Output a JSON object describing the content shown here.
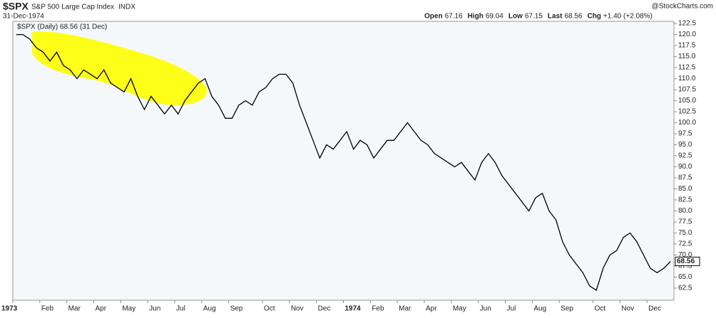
{
  "header": {
    "symbol": "$SPX",
    "name": "S&P 500 Large Cap Index",
    "exchange": "INDX",
    "date": "31-Dec-1974",
    "quote": [
      {
        "label": "Open",
        "value": "67.16"
      },
      {
        "label": "High",
        "value": "69.04"
      },
      {
        "label": "Low",
        "value": "67.15"
      },
      {
        "label": "Last",
        "value": "68.56"
      },
      {
        "label": "Chg",
        "value": "+1.40 (+2.08%)"
      }
    ],
    "credit": "@StockCharts.com"
  },
  "chart_data": {
    "type": "line",
    "legend": "$SPX (Daily) 68.56 (31 Dec)",
    "categories": [
      "1973",
      null,
      null,
      null,
      "Feb",
      null,
      null,
      null,
      "Mar",
      null,
      null,
      null,
      "Apr",
      null,
      null,
      null,
      "May",
      null,
      null,
      null,
      "Jun",
      null,
      null,
      null,
      "Jul",
      null,
      null,
      null,
      "Aug",
      null,
      null,
      null,
      "Sep",
      null,
      null,
      null,
      null,
      "Oct",
      null,
      null,
      null,
      "Nov",
      null,
      null,
      null,
      "Dec",
      null,
      null,
      null,
      "1974",
      null,
      null,
      null,
      "Feb",
      null,
      null,
      null,
      "Mar",
      null,
      null,
      null,
      "Apr",
      null,
      null,
      null,
      "May",
      null,
      null,
      null,
      "Jun",
      null,
      null,
      null,
      "Jul",
      null,
      null,
      null,
      "Aug",
      null,
      null,
      null,
      "Sep",
      null,
      null,
      null,
      null,
      "Oct",
      null,
      null,
      null,
      "Nov",
      null,
      null,
      null,
      "Dec",
      null,
      null,
      null
    ],
    "series": [
      {
        "name": "$SPX",
        "color": "#000000",
        "values": [
          120,
          120,
          119,
          117,
          116,
          114,
          116,
          113,
          112,
          110,
          112,
          111,
          110,
          112,
          109,
          108,
          107,
          110,
          106,
          103,
          106,
          104,
          102,
          104,
          102,
          105,
          107,
          109,
          110,
          106,
          104,
          101,
          101,
          104,
          105,
          104,
          107,
          108,
          110,
          111,
          111,
          109,
          104,
          100,
          96,
          92,
          95,
          94,
          96,
          98,
          94,
          96,
          95,
          92,
          94,
          96,
          96,
          98,
          100,
          98,
          96,
          95,
          93,
          92,
          91,
          90,
          91,
          89,
          87,
          91,
          93,
          91,
          88,
          86,
          84,
          82,
          80,
          83,
          84,
          80,
          78,
          73,
          70,
          68,
          66,
          63,
          62,
          67,
          70,
          71,
          74,
          75,
          73,
          70,
          67,
          66,
          67,
          68.56
        ]
      }
    ],
    "ylim": [
      59.75,
      123
    ],
    "yticks": [
      62.5,
      {
        "value": 65,
        "label": "65.0"
      },
      67.5,
      {
        "value": 70,
        "label": "70.0"
      },
      72.5,
      {
        "value": 75,
        "label": "75.0"
      },
      77.5,
      {
        "value": 80,
        "label": "80.0"
      },
      82.5,
      {
        "value": 85,
        "label": "85.0"
      },
      87.5,
      {
        "value": 90,
        "label": "90.0"
      },
      92.5,
      {
        "value": 95,
        "label": "95.0"
      },
      97.5,
      {
        "value": 100,
        "label": "100.0"
      },
      102.5,
      {
        "value": 105,
        "label": "105.0"
      },
      107.5,
      {
        "value": 110,
        "label": "110.0"
      },
      112.5,
      {
        "value": 115,
        "label": "115.0"
      },
      117.5,
      {
        "value": 120,
        "label": "120.0"
      },
      122.5
    ],
    "grid": false
  }
}
